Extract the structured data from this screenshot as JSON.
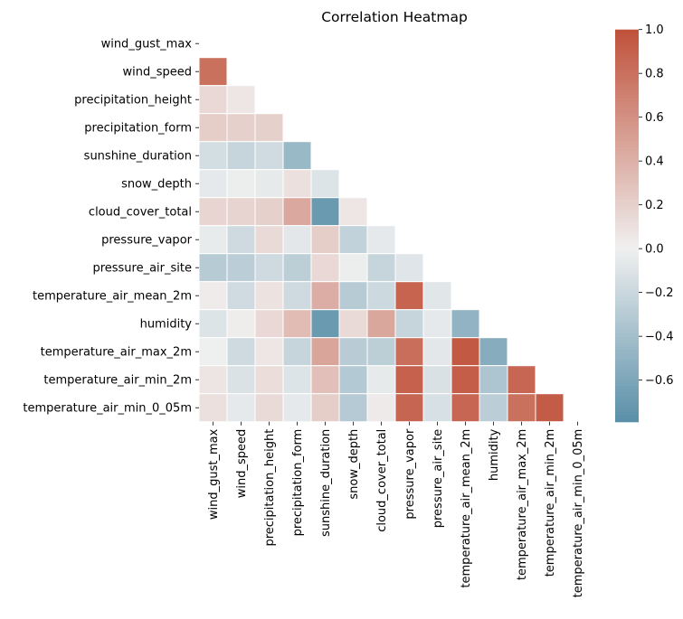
{
  "chart_data": {
    "type": "heatmap",
    "title": "Correlation Heatmap",
    "xlabel": "",
    "ylabel": "",
    "mask": "upper-triangle-including-diagonal",
    "labels": [
      "wind_gust_max",
      "wind_speed",
      "precipitation_height",
      "precipitation_form",
      "sunshine_duration",
      "snow_depth",
      "cloud_cover_total",
      "pressure_vapor",
      "pressure_air_site",
      "temperature_air_mean_2m",
      "humidity",
      "temperature_air_max_2m",
      "temperature_air_min_2m",
      "temperature_air_min_0_05m"
    ],
    "values": [
      [],
      [
        0.8
      ],
      [
        0.15,
        0.06
      ],
      [
        0.22,
        0.2,
        0.2
      ],
      [
        -0.15,
        -0.22,
        -0.17,
        -0.45
      ],
      [
        -0.06,
        -0.02,
        -0.05,
        0.1,
        -0.1
      ],
      [
        0.17,
        0.18,
        0.2,
        0.45,
        -0.7,
        0.06
      ],
      [
        -0.04,
        -0.18,
        0.14,
        -0.07,
        0.22,
        -0.24,
        -0.06
      ],
      [
        -0.3,
        -0.28,
        -0.18,
        -0.27,
        0.15,
        -0.02,
        -0.22,
        -0.09
      ],
      [
        0.03,
        -0.17,
        0.08,
        -0.18,
        0.42,
        -0.3,
        -0.19,
        0.88,
        -0.08
      ],
      [
        -0.1,
        0.02,
        0.15,
        0.33,
        -0.7,
        0.14,
        0.46,
        -0.22,
        -0.06,
        -0.5
      ],
      [
        -0.01,
        -0.18,
        0.06,
        -0.22,
        0.48,
        -0.29,
        -0.27,
        0.82,
        -0.07,
        0.95,
        -0.55
      ],
      [
        0.07,
        -0.11,
        0.12,
        -0.1,
        0.3,
        -0.32,
        -0.05,
        0.9,
        -0.12,
        0.92,
        -0.35,
        0.86
      ],
      [
        0.1,
        -0.06,
        0.14,
        -0.06,
        0.22,
        -0.31,
        0.04,
        0.87,
        -0.13,
        0.86,
        -0.28,
        0.8,
        0.93
      ]
    ],
    "colorbar": {
      "range": [
        -0.79,
        1.0
      ],
      "ticks": [
        1.0,
        0.8,
        0.6,
        0.4,
        0.2,
        0.0,
        -0.2,
        -0.4,
        -0.6
      ],
      "tick_labels": [
        "1.0",
        "0.8",
        "0.6",
        "0.4",
        "0.2",
        "0.0",
        "−0.2",
        "−0.4",
        "−0.6"
      ],
      "placement": "right"
    },
    "colors": {
      "negative": "#317595",
      "center": "#f0f0f0",
      "positive": "#c0513a"
    }
  }
}
